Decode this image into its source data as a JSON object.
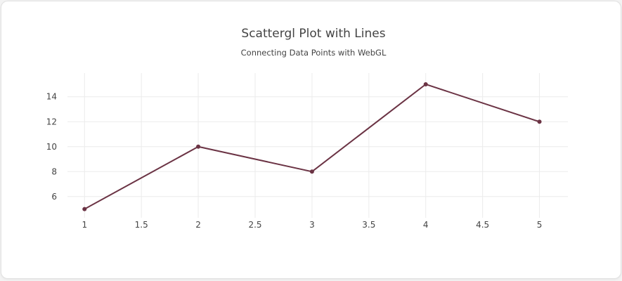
{
  "chart_data": {
    "type": "line",
    "title": "Scattergl Plot with Lines",
    "subtitle": "Connecting Data Points with WebGL",
    "xlabel": "",
    "ylabel": "",
    "x": [
      1,
      2,
      3,
      4,
      5
    ],
    "y": [
      5,
      10,
      8,
      15,
      12
    ],
    "xlim": [
      0.85,
      5.25
    ],
    "ylim": [
      4.3,
      15.9
    ],
    "x_ticks": [
      1,
      1.5,
      2,
      2.5,
      3,
      3.5,
      4,
      4.5,
      5
    ],
    "x_tick_labels": [
      "1",
      "1.5",
      "2",
      "2.5",
      "3",
      "3.5",
      "4",
      "4.5",
      "5"
    ],
    "y_ticks": [
      6,
      8,
      10,
      12,
      14
    ],
    "y_tick_labels": [
      "6",
      "8",
      "10",
      "12",
      "14"
    ],
    "grid": true,
    "mode": "lines+markers",
    "line_color": "#6b3344"
  }
}
